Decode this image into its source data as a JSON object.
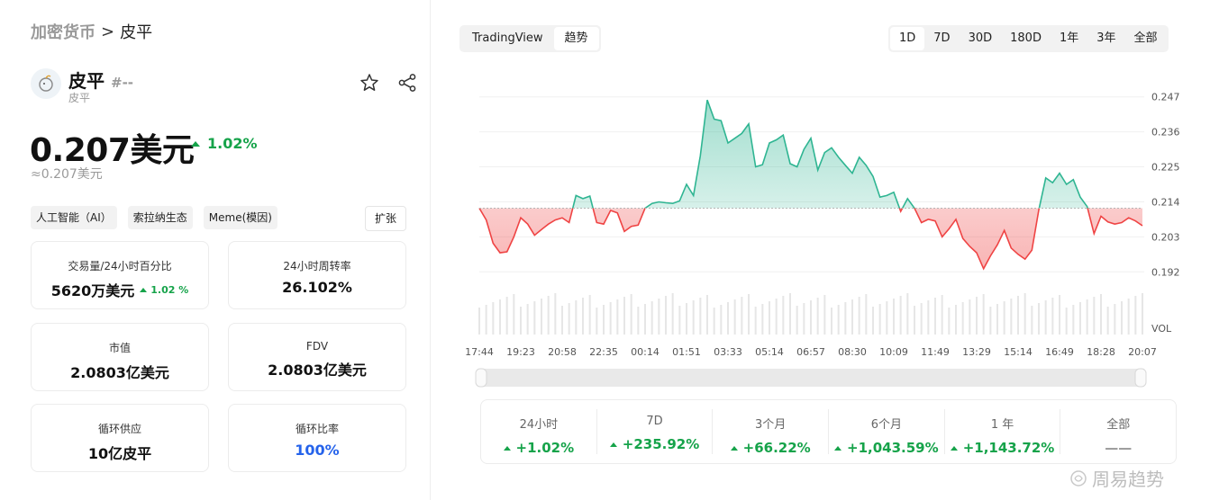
{
  "breadcrumb": {
    "parent": "加密货币",
    "separator": ">",
    "current": "皮平"
  },
  "coin": {
    "name": "皮平",
    "rank": "#--",
    "subtitle": "皮平"
  },
  "price": {
    "value": "0.207美元",
    "change": "1.02%",
    "approx": "≈0.207美元"
  },
  "tags": [
    "人工智能（AI）",
    "索拉纳生态",
    "Meme(模因)"
  ],
  "expand_label": "扩张",
  "stats": {
    "volume": {
      "label": "交易量/24小时百分比",
      "value": "5620万美元",
      "change": "1.02 %"
    },
    "turnover": {
      "label": "24小时周转率",
      "value": "26.102%"
    },
    "market_cap": {
      "label": "市值",
      "value": "2.0803亿美元"
    },
    "fdv": {
      "label": "FDV",
      "value": "2.0803亿美元"
    },
    "supply": {
      "label": "循环供应",
      "value": "10亿皮平"
    },
    "ratio": {
      "label": "循环比率",
      "value": "100%"
    }
  },
  "chart_tabs": [
    "TradingView",
    "趋势"
  ],
  "range_tabs": [
    "1D",
    "7D",
    "30D",
    "180D",
    "1年",
    "3年",
    "全部"
  ],
  "performance": [
    {
      "label": "24小时",
      "value": "+1.02%"
    },
    {
      "label": "7D",
      "value": "+235.92%"
    },
    {
      "label": "3个月",
      "value": "+66.22%"
    },
    {
      "label": "6个月",
      "value": "+1,043.59%"
    },
    {
      "label": "1 年",
      "value": "+1,143.72%"
    },
    {
      "label": "全部",
      "value": "——"
    }
  ],
  "watermark": "周易趋势",
  "colors": {
    "up": "#16a34a",
    "down": "#ef4444",
    "line_up": "#2fb592",
    "accent_blue": "#2563eb"
  },
  "chart_data": {
    "type": "area",
    "baseline": 0.2125,
    "y_ticks": [
      "0.2475",
      "0.2365",
      "0.2255",
      "0.2145",
      "0.2035",
      "0.1925"
    ],
    "ylim": [
      0.1875,
      0.2525
    ],
    "x_ticks": [
      "17:44",
      "19:23",
      "20:58",
      "22:35",
      "00:14",
      "01:51",
      "03:33",
      "05:14",
      "06:57",
      "08:30",
      "10:09",
      "11:49",
      "13:29",
      "15:14",
      "16:49",
      "18:28",
      "20:07"
    ],
    "volume_label": "VOL",
    "values": [
      0.2125,
      0.2088,
      0.2015,
      0.1985,
      0.1988,
      0.2035,
      0.2095,
      0.2075,
      0.204,
      0.2058,
      0.2075,
      0.2088,
      0.2095,
      0.208,
      0.2165,
      0.2155,
      0.2163,
      0.208,
      0.2075,
      0.2118,
      0.211,
      0.2052,
      0.2068,
      0.2072,
      0.2125,
      0.214,
      0.2145,
      0.2142,
      0.214,
      0.2148,
      0.22,
      0.2165,
      0.229,
      0.2465,
      0.2405,
      0.24,
      0.233,
      0.2345,
      0.236,
      0.239,
      0.2255,
      0.2262,
      0.233,
      0.234,
      0.2355,
      0.2265,
      0.2255,
      0.231,
      0.2345,
      0.2245,
      0.23,
      0.2315,
      0.2285,
      0.226,
      0.2235,
      0.2285,
      0.226,
      0.2225,
      0.216,
      0.2165,
      0.2175,
      0.2115,
      0.2155,
      0.2125,
      0.208,
      0.209,
      0.2085,
      0.2035,
      0.206,
      0.209,
      0.203,
      0.2005,
      0.1985,
      0.1935,
      0.1975,
      0.201,
      0.2055,
      0.2,
      0.198,
      0.1965,
      0.1993,
      0.212,
      0.222,
      0.2205,
      0.2235,
      0.22,
      0.2215,
      0.216,
      0.213,
      0.2045,
      0.21,
      0.2082,
      0.2075,
      0.208,
      0.2095,
      0.2085,
      0.207
    ]
  }
}
